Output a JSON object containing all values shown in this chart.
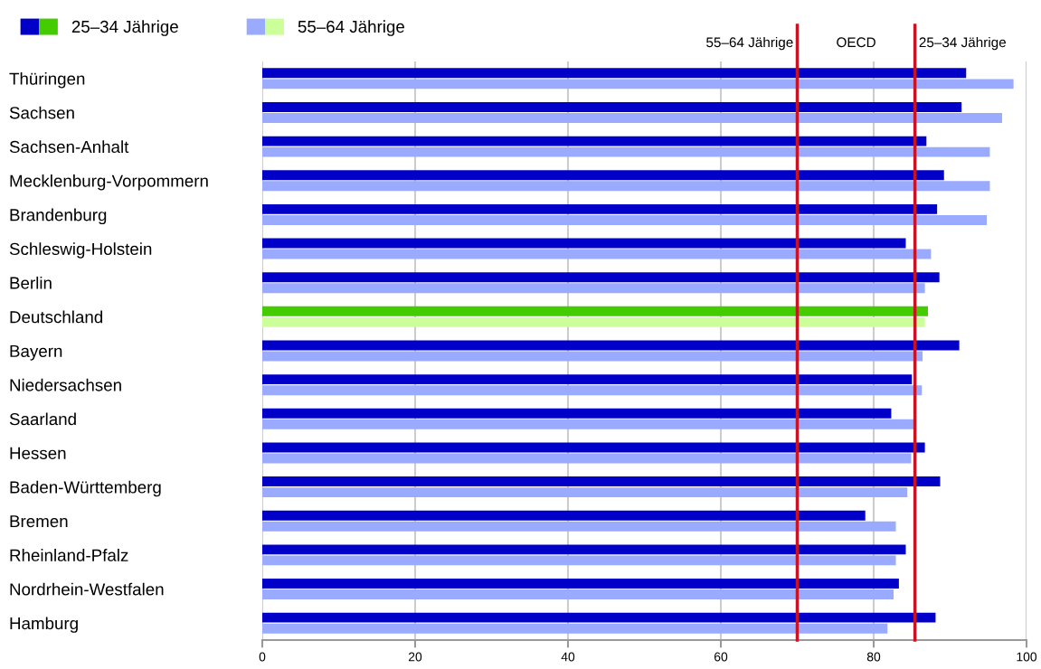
{
  "chart_data": {
    "type": "bar",
    "orientation": "horizontal",
    "categories": [
      "Thüringen",
      "Sachsen",
      "Sachsen-Anhalt",
      "Mecklenburg-Vorpommern",
      "Brandenburg",
      "Schleswig-Holstein",
      "Berlin",
      "Deutschland",
      "Bayern",
      "Niedersachsen",
      "Saarland",
      "Hessen",
      "Baden-Württemberg",
      "Bremen",
      "Rheinland-Pfalz",
      "Nordrhein-Westfalen",
      "Hamburg"
    ],
    "series": [
      {
        "name": "25–34 Jährige",
        "color": "#0000c8",
        "colors": [
          "#0000c8",
          "#0000c8",
          "#0000c8",
          "#0000c8",
          "#0000c8",
          "#0000c8",
          "#0000c8",
          "#44cc00",
          "#0000c8",
          "#0000c8",
          "#0000c8",
          "#0000c8",
          "#0000c8",
          "#0000c8",
          "#0000c8",
          "#0000c8",
          "#0000c8"
        ],
        "values": [
          92.1,
          91.5,
          86.9,
          89.2,
          88.3,
          84.2,
          88.6,
          87.1,
          91.2,
          85.0,
          82.3,
          86.7,
          88.7,
          78.9,
          84.2,
          83.3,
          88.1
        ]
      },
      {
        "name": "55–64 Jährige",
        "color": "#99aaff",
        "colors": [
          "#99aaff",
          "#99aaff",
          "#99aaff",
          "#99aaff",
          "#99aaff",
          "#99aaff",
          "#99aaff",
          "#ccff99",
          "#99aaff",
          "#99aaff",
          "#99aaff",
          "#99aaff",
          "#99aaff",
          "#99aaff",
          "#99aaff",
          "#99aaff",
          "#99aaff"
        ],
        "values": [
          98.3,
          96.8,
          95.2,
          95.2,
          94.8,
          87.5,
          86.7,
          86.7,
          86.4,
          86.3,
          85.4,
          84.9,
          84.4,
          82.9,
          82.9,
          82.6,
          81.8
        ]
      }
    ],
    "xlim": [
      0,
      100
    ],
    "xticks": [
      0,
      20,
      40,
      60,
      80,
      100
    ],
    "grid": "x",
    "legend": "top left",
    "ref_lines": [
      {
        "axis": "x",
        "value": 70,
        "label": "55–64 Jährige",
        "color": "#cc1122"
      },
      {
        "axis": "x",
        "value": 85.4,
        "label": "25–34 Jährige",
        "color": "#cc1122"
      }
    ],
    "annotations": [
      "OECD"
    ]
  }
}
